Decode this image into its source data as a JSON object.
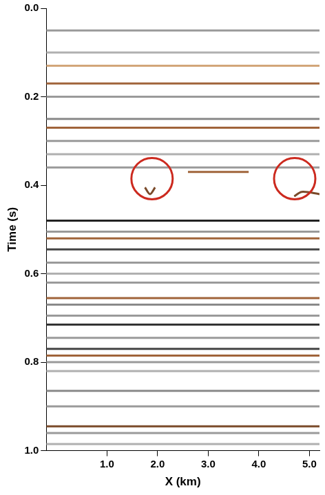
{
  "chart_data": {
    "type": "line",
    "x_label": "X (km)",
    "y_label": "Time (s)",
    "xlim": [
      -0.2,
      5.2
    ],
    "ylim": [
      0,
      1
    ],
    "xticks": [
      {
        "value": 1,
        "label": "1.0"
      },
      {
        "value": 2,
        "label": "2.0"
      },
      {
        "value": 3,
        "label": "3.0"
      },
      {
        "value": 4,
        "label": "4.0"
      },
      {
        "value": 5,
        "label": "5.0"
      }
    ],
    "yticks": [
      {
        "value": 0,
        "label": "0.0"
      },
      {
        "value": 0.2,
        "label": "0.2"
      },
      {
        "value": 0.4,
        "label": "0.4"
      },
      {
        "value": 0.6,
        "label": "0.6"
      },
      {
        "value": 0.8,
        "label": "0.8"
      },
      {
        "value": 1,
        "label": "1.0"
      }
    ],
    "grid": false,
    "series": [
      {
        "color": "#9a9a9a",
        "x": [
          -0.2,
          5.2
        ],
        "values": [
          0.05,
          0.05
        ]
      },
      {
        "color": "#b0b0b0",
        "x": [
          -0.2,
          5.2
        ],
        "values": [
          0.1,
          0.1
        ]
      },
      {
        "color": "#d2a679",
        "x": [
          -0.2,
          5.2
        ],
        "values": [
          0.13,
          0.13
        ]
      },
      {
        "color": "#a0643a",
        "x": [
          -0.2,
          5.2
        ],
        "values": [
          0.17,
          0.17
        ]
      },
      {
        "color": "#9a9a9a",
        "x": [
          -0.2,
          5.2
        ],
        "values": [
          0.2,
          0.2
        ]
      },
      {
        "color": "#8a8a8a",
        "x": [
          -0.2,
          5.2
        ],
        "values": [
          0.25,
          0.25
        ]
      },
      {
        "color": "#a0643a",
        "x": [
          -0.2,
          5.2
        ],
        "values": [
          0.27,
          0.27
        ]
      },
      {
        "color": "#9a9a9a",
        "x": [
          -0.2,
          5.2
        ],
        "values": [
          0.3,
          0.3
        ]
      },
      {
        "color": "#b0b0b0",
        "x": [
          -0.2,
          5.2
        ],
        "values": [
          0.33,
          0.33
        ]
      },
      {
        "color": "#9a9a9a",
        "x": [
          -0.2,
          5.2
        ],
        "values": [
          0.36,
          0.36
        ]
      },
      {
        "color": "#a0643a",
        "x": [
          2.6,
          3.8
        ],
        "values": [
          0.37,
          0.37
        ]
      },
      {
        "color": "#7a4a2a",
        "x": [
          1.75,
          1.85,
          1.95
        ],
        "values": [
          0.405,
          0.42,
          0.405
        ]
      },
      {
        "color": "#7a4a2a",
        "x": [
          4.7,
          4.85,
          5.2
        ],
        "values": [
          0.425,
          0.415,
          0.42
        ]
      },
      {
        "color": "#222222",
        "x": [
          -0.2,
          5.2
        ],
        "values": [
          0.48,
          0.48
        ]
      },
      {
        "color": "#9a9a9a",
        "x": [
          -0.2,
          5.2
        ],
        "values": [
          0.505,
          0.505
        ]
      },
      {
        "color": "#a0643a",
        "x": [
          -0.2,
          5.2
        ],
        "values": [
          0.52,
          0.52
        ]
      },
      {
        "color": "#444444",
        "x": [
          -0.2,
          5.2
        ],
        "values": [
          0.545,
          0.545
        ]
      },
      {
        "color": "#9a9a9a",
        "x": [
          -0.2,
          5.2
        ],
        "values": [
          0.575,
          0.575
        ]
      },
      {
        "color": "#b0b0b0",
        "x": [
          -0.2,
          5.2
        ],
        "values": [
          0.6,
          0.6
        ]
      },
      {
        "color": "#9a9a9a",
        "x": [
          -0.2,
          5.2
        ],
        "values": [
          0.62,
          0.62
        ]
      },
      {
        "color": "#a0643a",
        "x": [
          -0.2,
          5.2
        ],
        "values": [
          0.655,
          0.655
        ]
      },
      {
        "color": "#8a8a8a",
        "x": [
          -0.2,
          5.2
        ],
        "values": [
          0.67,
          0.67
        ]
      },
      {
        "color": "#9a9a9a",
        "x": [
          -0.2,
          5.2
        ],
        "values": [
          0.695,
          0.695
        ]
      },
      {
        "color": "#333333",
        "x": [
          -0.2,
          5.2
        ],
        "values": [
          0.715,
          0.715
        ]
      },
      {
        "color": "#9a9a9a",
        "x": [
          -0.2,
          5.2
        ],
        "values": [
          0.745,
          0.745
        ]
      },
      {
        "color": "#444444",
        "x": [
          -0.2,
          5.2
        ],
        "values": [
          0.77,
          0.77
        ]
      },
      {
        "color": "#a0643a",
        "x": [
          -0.2,
          5.2
        ],
        "values": [
          0.785,
          0.785
        ]
      },
      {
        "color": "#9a9a9a",
        "x": [
          -0.2,
          5.2
        ],
        "values": [
          0.8,
          0.8
        ]
      },
      {
        "color": "#b0b0b0",
        "x": [
          -0.2,
          5.2
        ],
        "values": [
          0.82,
          0.82
        ]
      },
      {
        "color": "#8a8a8a",
        "x": [
          -0.2,
          5.2
        ],
        "values": [
          0.865,
          0.865
        ]
      },
      {
        "color": "#9a9a9a",
        "x": [
          -0.2,
          5.2
        ],
        "values": [
          0.9,
          0.9
        ]
      },
      {
        "color": "#7a4a2a",
        "x": [
          -0.2,
          5.2
        ],
        "values": [
          0.945,
          0.945
        ]
      },
      {
        "color": "#9a9a9a",
        "x": [
          -0.2,
          5.2
        ],
        "values": [
          0.96,
          0.96
        ]
      },
      {
        "color": "#b0b0b0",
        "x": [
          -0.2,
          5.2
        ],
        "values": [
          0.985,
          0.985
        ]
      }
    ],
    "annotations": [
      {
        "shape": "circle",
        "x": 1.89,
        "y": 0.385,
        "color": "#cc2a1f"
      },
      {
        "shape": "circle",
        "x": 4.71,
        "y": 0.385,
        "color": "#cc2a1f"
      }
    ]
  }
}
